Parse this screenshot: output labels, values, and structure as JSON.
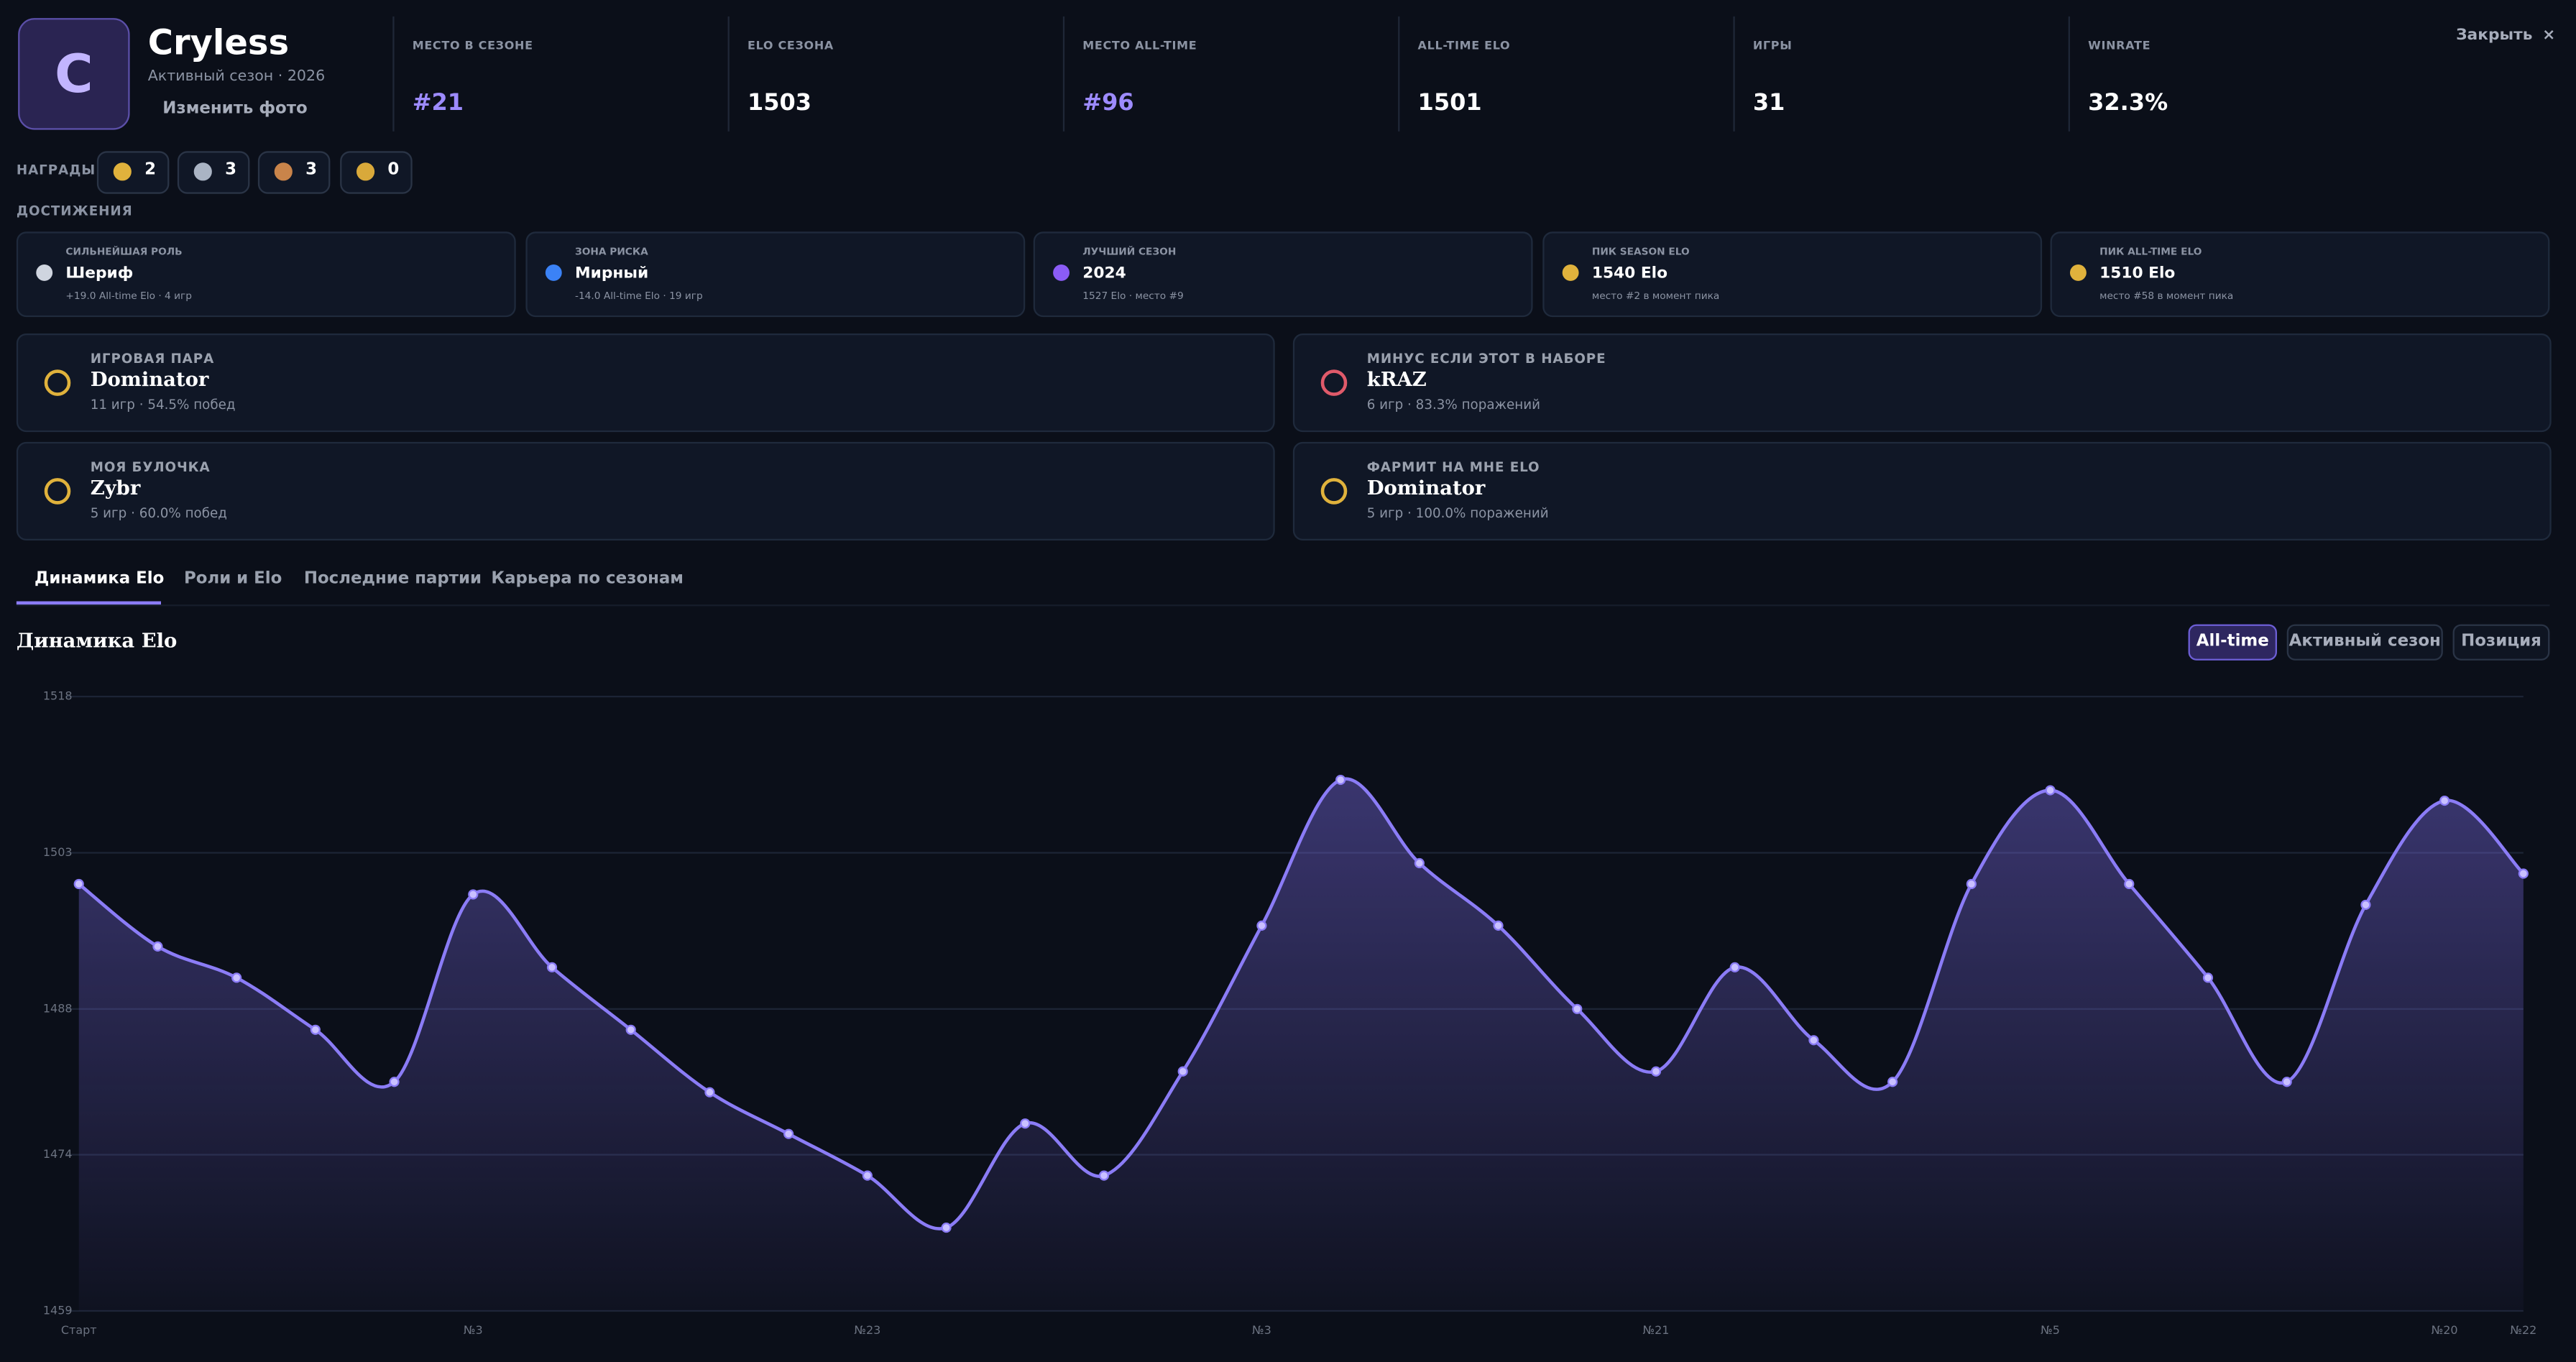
{
  "profile": {
    "initial": "C",
    "name": "Cryless",
    "subtitle": "Активный сезон · 2026",
    "change_photo": "Изменить фото"
  },
  "close": "Закрыть",
  "close_icon": "×",
  "stats": [
    {
      "label": "МЕСТО В СЕЗОНЕ",
      "value": "#21"
    },
    {
      "label": "ELO СЕЗОНА",
      "value": "1503"
    },
    {
      "label": "МЕСТО ALL-TIME",
      "value": "#96"
    },
    {
      "label": "ALL-TIME ELO",
      "value": "1501"
    },
    {
      "label": "ИГРЫ",
      "value": "31"
    },
    {
      "label": "WINRATE",
      "value": "32.3%"
    }
  ],
  "awards": {
    "label": "НАГРАДЫ",
    "items": [
      "2",
      "3",
      "3",
      "0"
    ]
  },
  "achievements": {
    "title": "ДОСТИЖЕНИЯ",
    "items": [
      {
        "label": "СИЛЬНЕЙШАЯ РОЛЬ",
        "value": "Шериф",
        "note": "+19.0 All-time Elo · 4 игр"
      },
      {
        "label": "ЗОНА РИСКА",
        "value": "Мирный",
        "note": "-14.0 All-time Elo · 19 игр"
      },
      {
        "label": "ЛУЧШИЙ СЕЗОН",
        "value": "2024",
        "note": "1527 Elo · место #9"
      },
      {
        "label": "ПИК SEASON ELO",
        "value": "1540 Elo",
        "note": "место #2 в момент пика"
      },
      {
        "label": "ПИК ALL-TIME ELO",
        "value": "1510 Elo",
        "note": "место #58 в момент пика"
      }
    ]
  },
  "pairs": [
    {
      "label": "ИГРОВАЯ ПАРА",
      "name": "Dominator",
      "note": "11 игр · 54.5% побед"
    },
    {
      "label": "МИНУС ЕСЛИ ЭТОТ В НАБОРЕ",
      "name": "kRAZ",
      "note": "6 игр · 83.3% поражений"
    },
    {
      "label": "МОЯ БУЛОЧКА",
      "name": "Zybr",
      "note": "5 игр · 60.0% побед"
    },
    {
      "label": "ФАРМИТ НА МНЕ ELO",
      "name": "Dominator",
      "note": "5 игр · 100.0% поражений"
    }
  ],
  "tabs": [
    "Динамика Elo",
    "Роли и Elo",
    "Последние партии",
    "Карьера по сезонам"
  ],
  "section_title": "Динамика Elo",
  "toggles": [
    "All-time",
    "Активный сезон",
    "Позиция"
  ],
  "chart_data": {
    "type": "line",
    "color": "#8b7cf6",
    "categories": [
      "Старт",
      null,
      null,
      null,
      null,
      "№3",
      null,
      null,
      null,
      null,
      "№23",
      null,
      null,
      null,
      null,
      "№3",
      null,
      null,
      null,
      null,
      "№21",
      null,
      null,
      null,
      null,
      "№5",
      null,
      null,
      null,
      null,
      "№20",
      "№22"
    ],
    "values": [
      1500,
      1494,
      1491,
      1486,
      1481,
      1499,
      1492,
      1486,
      1480,
      1476,
      1472,
      1467,
      1477,
      1472,
      1482,
      1496,
      1510,
      1502,
      1496,
      1488,
      1482,
      1492,
      1485,
      1481,
      1500,
      1509,
      1500,
      1491,
      1481,
      1498,
      1508,
      1501
    ],
    "ylim": [
      1459,
      1518
    ],
    "yticks": [
      1459,
      1474,
      1488,
      1503,
      1518
    ],
    "grid": true
  }
}
